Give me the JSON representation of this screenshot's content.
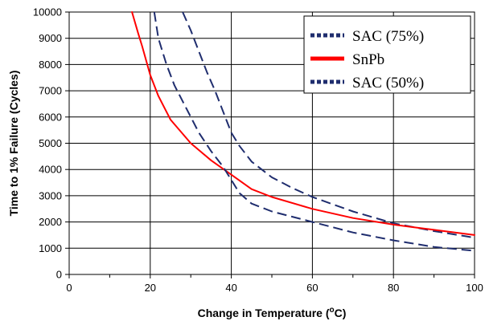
{
  "chart_data": {
    "type": "line",
    "title": "",
    "xlabel": "Change in Temperature (",
    "xlabel_sup": "o",
    "xlabel_unit": "C)",
    "ylabel": "Time to 1% Failure (Cycles)",
    "xlim": [
      0,
      100
    ],
    "ylim": [
      0,
      10000
    ],
    "x_ticks": [
      0,
      20,
      40,
      60,
      80,
      100
    ],
    "y_ticks": [
      0,
      1000,
      2000,
      3000,
      4000,
      5000,
      6000,
      7000,
      8000,
      9000,
      10000
    ],
    "grid": true,
    "legend_position": "top-right",
    "legend": [
      "SAC (75%)",
      "SnPb",
      "SAC (50%)"
    ],
    "series": [
      {
        "name": "SAC (75%)",
        "color": "#1f2d6e",
        "legend_style": "dotted",
        "line_style": "dashed",
        "points": [
          [
            28,
            10000
          ],
          [
            30,
            9300
          ],
          [
            32,
            8500
          ],
          [
            34,
            7700
          ],
          [
            36,
            7000
          ],
          [
            38,
            6200
          ],
          [
            40,
            5400
          ],
          [
            42,
            4900
          ],
          [
            45,
            4300
          ],
          [
            50,
            3700
          ],
          [
            55,
            3300
          ],
          [
            60,
            2950
          ],
          [
            70,
            2400
          ],
          [
            80,
            1950
          ],
          [
            90,
            1650
          ],
          [
            100,
            1400
          ]
        ]
      },
      {
        "name": "SnPb",
        "color": "#ff0000",
        "legend_style": "solid",
        "line_style": "solid",
        "points": [
          [
            15.5,
            10000
          ],
          [
            17,
            9200
          ],
          [
            18,
            8700
          ],
          [
            20,
            7600
          ],
          [
            22,
            6800
          ],
          [
            25,
            5900
          ],
          [
            30,
            5000
          ],
          [
            35,
            4350
          ],
          [
            40,
            3800
          ],
          [
            45,
            3250
          ],
          [
            50,
            2950
          ],
          [
            60,
            2500
          ],
          [
            70,
            2150
          ],
          [
            80,
            1900
          ],
          [
            90,
            1700
          ],
          [
            100,
            1500
          ]
        ]
      },
      {
        "name": "SAC (50%)",
        "color": "#1f2d6e",
        "legend_style": "dotted",
        "line_style": "dashed",
        "points": [
          [
            21,
            10000
          ],
          [
            22,
            9000
          ],
          [
            24,
            8000
          ],
          [
            26,
            7200
          ],
          [
            28,
            6600
          ],
          [
            30,
            6000
          ],
          [
            32,
            5400
          ],
          [
            35,
            4700
          ],
          [
            38,
            4100
          ],
          [
            40,
            3600
          ],
          [
            42,
            3100
          ],
          [
            45,
            2700
          ],
          [
            50,
            2400
          ],
          [
            60,
            2000
          ],
          [
            70,
            1600
          ],
          [
            80,
            1300
          ],
          [
            90,
            1050
          ],
          [
            100,
            900
          ]
        ]
      }
    ]
  }
}
